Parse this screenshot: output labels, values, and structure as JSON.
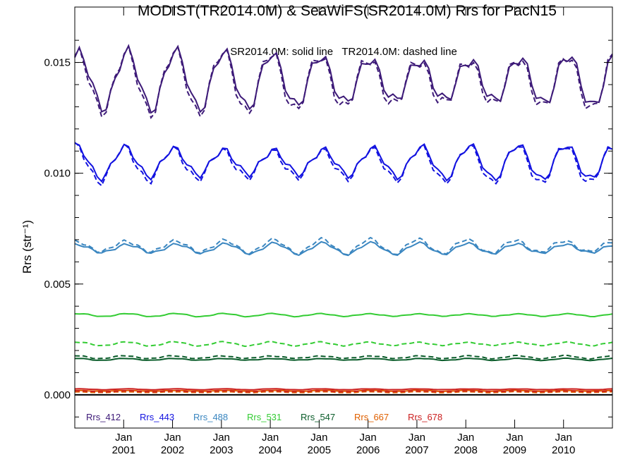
{
  "chart_data": {
    "type": "line",
    "title": "MODIST(TR2014.0M) & SeaWiFS(SR2014.0M)  Rrs for PacN15",
    "annotation": "SR2014.0M: solid line   TR2014.0M: dashed line",
    "ylabel": "Rrs (str⁻¹)",
    "xlabel": "",
    "ylim": [
      -0.0015,
      0.0175
    ],
    "xlim": [
      2000.0,
      2011.0
    ],
    "y_ticks": [
      "0.000",
      "0.005",
      "0.010",
      "0.015"
    ],
    "x_tick_month": "Jan",
    "x_tick_years": [
      "2001",
      "2002",
      "2003",
      "2004",
      "2005",
      "2006",
      "2007",
      "2008",
      "2009",
      "2010"
    ],
    "grid": false,
    "legend_placement": "bottom-left",
    "zero_line": true,
    "series": [
      {
        "name": "Rrs_412",
        "color": "#3d1a78",
        "solid_mean": 0.0142,
        "solid_amp": 0.0011,
        "dashed_mean": 0.0141,
        "dashed_amp": 0.0012
      },
      {
        "name": "Rrs_443",
        "color": "#1212e0",
        "solid_mean": 0.0105,
        "solid_amp": 0.00065,
        "dashed_mean": 0.0104,
        "dashed_amp": 0.00072
      },
      {
        "name": "Rrs_488",
        "color": "#3a86c0",
        "solid_mean": 0.0066,
        "solid_amp": 0.00022,
        "dashed_mean": 0.0067,
        "dashed_amp": 0.00028
      },
      {
        "name": "Rrs_531",
        "color": "#33cc33",
        "solid_mean": 0.0036,
        "solid_amp": 6e-05,
        "dashed_mean": 0.0023,
        "dashed_amp": 8e-05
      },
      {
        "name": "Rrs_547",
        "color": "#0a5c2a",
        "solid_mean": 0.0016,
        "solid_amp": 4e-05,
        "dashed_mean": 0.0017,
        "dashed_amp": 6e-05
      },
      {
        "name": "Rrs_667",
        "color": "#e06000",
        "solid_mean": 0.00018,
        "solid_amp": 2e-05,
        "dashed_mean": 0.00012,
        "dashed_amp": 2e-05
      },
      {
        "name": "Rrs_678",
        "color": "#cc2020",
        "solid_mean": 0.00025,
        "solid_amp": 2e-05,
        "dashed_mean": 0.00016,
        "dashed_amp": 2e-05
      }
    ]
  }
}
